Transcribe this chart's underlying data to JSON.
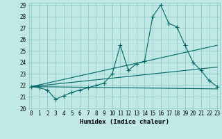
{
  "bg_color": "#c0e8e4",
  "grid_color": "#88c4c0",
  "line_color": "#006666",
  "x_min": 0,
  "x_max": 23,
  "y_min": 20,
  "y_max": 29,
  "xlabel": "Humidex (Indice chaleur)",
  "xlabel_fontsize": 6.5,
  "tick_fontsize": 5.5,
  "marker": "+",
  "markersize": 4,
  "linewidth": 0.8,
  "main_series": [
    [
      0,
      21.9
    ],
    [
      1,
      21.8
    ],
    [
      2,
      21.6
    ],
    [
      3,
      20.8
    ],
    [
      4,
      21.1
    ],
    [
      5,
      21.4
    ],
    [
      6,
      21.6
    ],
    [
      7,
      21.8
    ],
    [
      8,
      22.0
    ],
    [
      9,
      22.2
    ],
    [
      10,
      23.0
    ],
    [
      11,
      25.5
    ],
    [
      12,
      23.3
    ],
    [
      13,
      23.9
    ],
    [
      14,
      24.1
    ],
    [
      15,
      28.0
    ],
    [
      16,
      29.0
    ],
    [
      17,
      27.4
    ],
    [
      18,
      27.1
    ],
    [
      19,
      25.5
    ],
    [
      20,
      24.0
    ],
    [
      21,
      23.3
    ],
    [
      22,
      22.4
    ],
    [
      23,
      21.9
    ]
  ],
  "lower_line": [
    [
      0,
      21.9
    ],
    [
      23,
      21.7
    ]
  ],
  "upper_line": [
    [
      0,
      21.9
    ],
    [
      23,
      25.5
    ]
  ],
  "mid_line": [
    [
      0,
      21.9
    ],
    [
      23,
      23.6
    ]
  ]
}
